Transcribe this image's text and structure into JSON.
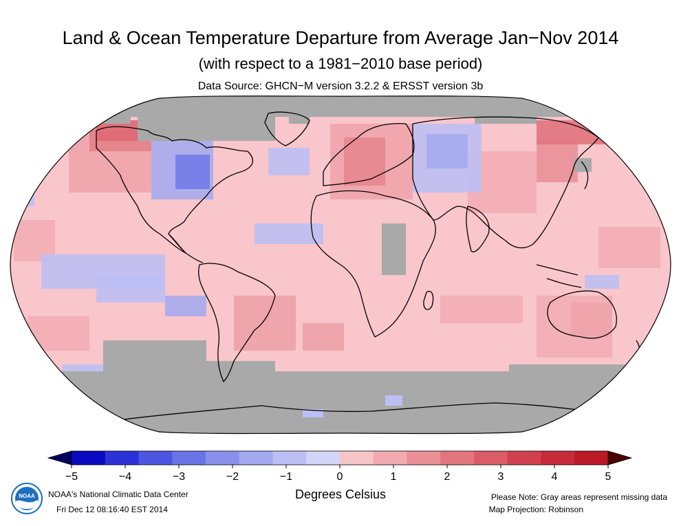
{
  "header": {
    "title": "Land & Ocean Temperature Departure from Average Jan−Nov 2014",
    "subtitle": "(with respect to a 1981−2010 base period)",
    "source": "Data Source: GHCN−M version 3.2.2 & ERSST version 3b"
  },
  "legend": {
    "units": "Degrees Celsius",
    "ticks": [
      "−5",
      "−4",
      "−3",
      "−2",
      "−1",
      "0",
      "1",
      "2",
      "3",
      "4",
      "5"
    ],
    "colors": [
      "#0a0ac0",
      "#2b33d6",
      "#4c56e0",
      "#6b74e6",
      "#8890ec",
      "#a3a9f0",
      "#bcbff4",
      "#d4d6f8",
      "#f7c4c8",
      "#f1aab0",
      "#ea9097",
      "#e2767f",
      "#da5c67",
      "#d1414f",
      "#c72a38",
      "#b91a26"
    ],
    "under_color": "#000060",
    "over_color": "#4a0000"
  },
  "map": {
    "projection": "Robinson",
    "missing_color": "#a9a9a9",
    "base_color": "#f8c6cb"
  },
  "footer": {
    "center_name": "NOAA's National Climatic Data Center",
    "timestamp": "Fri Dec 12 08:16:40 EST 2014",
    "note": "Please Note: Gray areas represent missing data",
    "projection_note": "Map Projection: Robinson",
    "logo_text": "NOAA"
  }
}
